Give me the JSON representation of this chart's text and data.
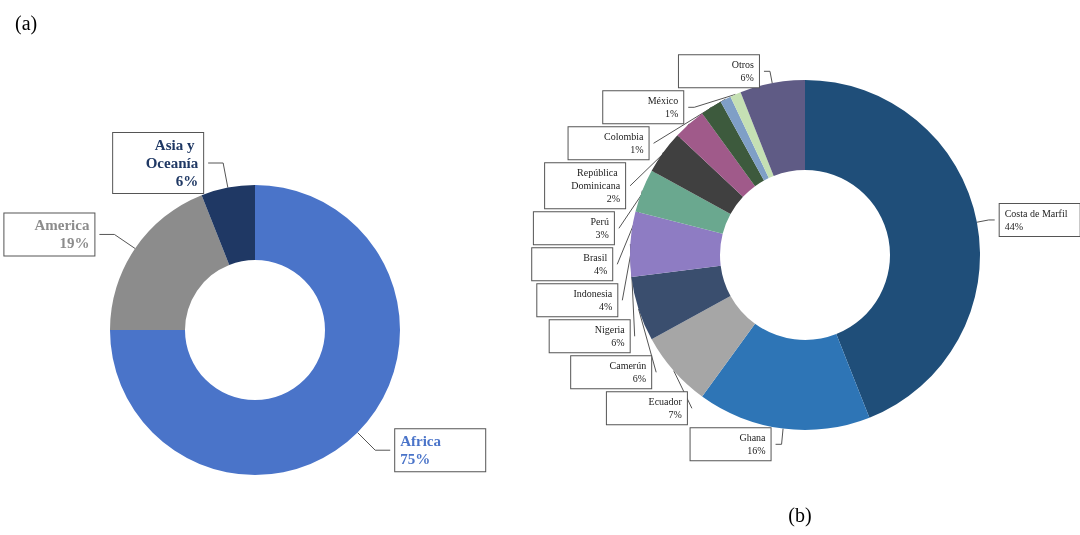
{
  "chart_data": [
    {
      "type": "donut",
      "title": "(a)",
      "categories": [
        "Africa",
        "America",
        "Asia y Oceanía"
      ],
      "values": [
        75,
        19,
        6
      ],
      "value_labels": [
        "75%",
        "19%",
        "6%"
      ],
      "colors": [
        "#4a74c9",
        "#8c8c8c",
        "#1f3864"
      ]
    },
    {
      "type": "donut",
      "title": "(b)",
      "categories": [
        "Costa de Marfil",
        "Ghana",
        "Ecuador",
        "Camerún",
        "Nigeria",
        "Indonesia",
        "Brasil",
        "Perú",
        "República Dominicana",
        "Colombia",
        "México",
        "Otros"
      ],
      "values": [
        44,
        16,
        7,
        6,
        6,
        4,
        4,
        3,
        2,
        1,
        1,
        6
      ],
      "value_labels": [
        "44%",
        "16%",
        "7%",
        "6%",
        "6%",
        "4%",
        "4%",
        "3%",
        "2%",
        "1%",
        "1%",
        "6%"
      ],
      "colors": [
        "#1f4e79",
        "#2e75b6",
        "#a6a6a6",
        "#3a4e6e",
        "#8e7cc3",
        "#6aa88f",
        "#404040",
        "#a05a8a",
        "#3d5a3d",
        "#7f9fc6",
        "#c5e0b4",
        "#5f5b85"
      ]
    }
  ]
}
